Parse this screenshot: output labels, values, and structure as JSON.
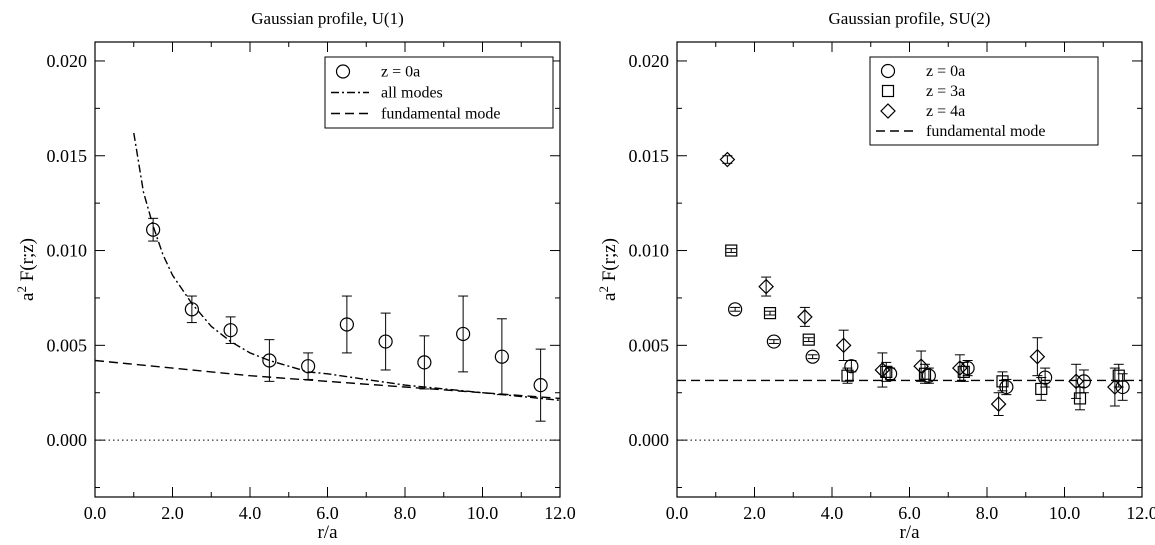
{
  "chart_data": [
    {
      "type": "scatter",
      "title": "Gaussian profile, U(1)",
      "xlabel": "r/a",
      "ylabel_prefix": "a",
      "ylabel_sup": "2",
      "ylabel_main": " F(r;z)",
      "xlim": [
        0,
        12
      ],
      "ylim": [
        -0.003,
        0.021
      ],
      "xticks": [
        "0.0",
        "2.0",
        "4.0",
        "6.0",
        "8.0",
        "10.0",
        "12.0"
      ],
      "yticks": [
        "0.000",
        "0.005",
        "0.010",
        "0.015",
        "0.020"
      ],
      "grid": false,
      "legend_position": "top-right",
      "legend": [
        {
          "label": "z = 0a",
          "symbol": "circle"
        },
        {
          "label": "all modes",
          "symbol": "dashdot"
        },
        {
          "label": "fundamental mode",
          "symbol": "dashed"
        }
      ],
      "series": [
        {
          "name": "z = 0a",
          "marker": "circle",
          "x": [
            1.5,
            2.5,
            3.5,
            4.5,
            5.5,
            6.5,
            7.5,
            8.5,
            9.5,
            10.5,
            11.5
          ],
          "y": [
            0.0111,
            0.0069,
            0.0058,
            0.0042,
            0.0039,
            0.0061,
            0.0052,
            0.0041,
            0.0056,
            0.0044,
            0.0029
          ],
          "err": [
            0.0006,
            0.0007,
            0.0007,
            0.0011,
            0.0007,
            0.0015,
            0.0015,
            0.0014,
            0.002,
            0.002,
            0.0019
          ]
        }
      ],
      "curves": [
        {
          "name": "all modes",
          "style": "dashdot",
          "x": [
            1.0,
            1.25,
            1.5,
            1.75,
            2.0,
            2.5,
            3.0,
            3.5,
            4.0,
            4.5,
            5.0,
            5.5,
            6.0,
            7.0,
            8.0,
            9.0,
            10.0,
            11.0,
            12.0
          ],
          "y": [
            0.0162,
            0.0131,
            0.0113,
            0.0098,
            0.0087,
            0.0072,
            0.006,
            0.0052,
            0.0046,
            0.0042,
            0.0039,
            0.0036,
            0.0035,
            0.0032,
            0.0029,
            0.0027,
            0.0025,
            0.0023,
            0.0021
          ]
        },
        {
          "name": "fundamental mode",
          "style": "dashed",
          "x": [
            0,
            2,
            4,
            6,
            8,
            10,
            12
          ],
          "y": [
            0.0042,
            0.0038,
            0.0034,
            0.0031,
            0.0028,
            0.0025,
            0.0022
          ]
        }
      ],
      "reference_line": {
        "y": 0.0,
        "style": "dotted"
      }
    },
    {
      "type": "scatter",
      "title": "Gaussian profile, SU(2)",
      "xlabel": "r/a",
      "ylabel_prefix": "a",
      "ylabel_sup": "2",
      "ylabel_main": " F(r;z)",
      "xlim": [
        0,
        12
      ],
      "ylim": [
        -0.003,
        0.021
      ],
      "xticks": [
        "0.0",
        "2.0",
        "4.0",
        "6.0",
        "8.0",
        "10.0",
        "12.0"
      ],
      "yticks": [
        "0.000",
        "0.005",
        "0.010",
        "0.015",
        "0.020"
      ],
      "grid": false,
      "legend_position": "top-right",
      "legend": [
        {
          "label": "z = 0a",
          "symbol": "circle"
        },
        {
          "label": "z = 3a",
          "symbol": "square"
        },
        {
          "label": "z = 4a",
          "symbol": "diamond"
        },
        {
          "label": "fundamental mode",
          "symbol": "dashed"
        }
      ],
      "series": [
        {
          "name": "z = 0a",
          "marker": "circle",
          "x": [
            1.5,
            2.5,
            3.5,
            4.5,
            5.5,
            6.5,
            7.5,
            8.5,
            9.5,
            10.5,
            11.5
          ],
          "y": [
            0.0069,
            0.0052,
            0.0044,
            0.0039,
            0.0035,
            0.0034,
            0.0038,
            0.0028,
            0.0033,
            0.0031,
            0.0028
          ],
          "err": [
            0.0001,
            0.0001,
            0.0001,
            0.0003,
            0.0003,
            0.0004,
            0.0004,
            0.0004,
            0.0005,
            0.0006,
            0.0007
          ]
        },
        {
          "name": "z = 3a",
          "marker": "square",
          "x": [
            1.4,
            2.4,
            3.4,
            4.4,
            5.4,
            6.4,
            7.4,
            8.4,
            9.4,
            10.4,
            11.4
          ],
          "y": [
            0.01,
            0.0067,
            0.0053,
            0.0034,
            0.0036,
            0.0035,
            0.0036,
            0.0031,
            0.0027,
            0.0022,
            0.0034
          ],
          "err": [
            0.0001,
            0.0001,
            0.0001,
            0.0004,
            0.0005,
            0.0005,
            0.0005,
            0.0005,
            0.0006,
            0.0006,
            0.0006
          ]
        },
        {
          "name": "z = 4a",
          "marker": "diamond",
          "x": [
            1.3,
            2.3,
            3.3,
            4.3,
            5.3,
            6.3,
            7.3,
            8.3,
            9.3,
            10.3,
            11.3
          ],
          "y": [
            0.0148,
            0.0081,
            0.0065,
            0.005,
            0.0037,
            0.0039,
            0.0038,
            0.0019,
            0.0044,
            0.0031,
            0.0028
          ],
          "err": [
            0.0002,
            0.0005,
            0.0005,
            0.0008,
            0.0009,
            0.0008,
            0.0007,
            0.0006,
            0.001,
            0.0009,
            0.001
          ]
        }
      ],
      "curves": [
        {
          "name": "fundamental mode",
          "style": "dashed",
          "x": [
            0,
            12
          ],
          "y": [
            0.00315,
            0.00315
          ]
        }
      ],
      "reference_line": {
        "y": 0.0,
        "style": "dotted"
      }
    }
  ]
}
